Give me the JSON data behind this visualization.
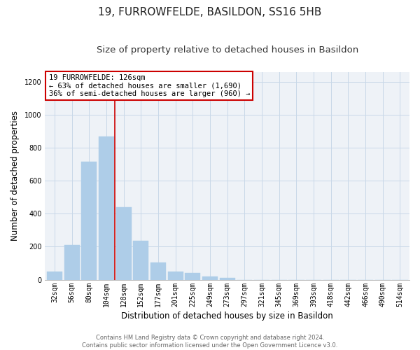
{
  "title": "19, FURROWFELDE, BASILDON, SS16 5HB",
  "subtitle": "Size of property relative to detached houses in Basildon",
  "xlabel": "Distribution of detached houses by size in Basildon",
  "ylabel": "Number of detached properties",
  "bar_labels": [
    "32sqm",
    "56sqm",
    "80sqm",
    "104sqm",
    "128sqm",
    "152sqm",
    "177sqm",
    "201sqm",
    "225sqm",
    "249sqm",
    "273sqm",
    "297sqm",
    "321sqm",
    "345sqm",
    "369sqm",
    "393sqm",
    "418sqm",
    "442sqm",
    "466sqm",
    "490sqm",
    "514sqm"
  ],
  "bar_values": [
    50,
    210,
    715,
    870,
    440,
    235,
    105,
    50,
    40,
    20,
    10,
    0,
    0,
    0,
    0,
    0,
    0,
    0,
    0,
    0,
    0
  ],
  "bar_color": "#aecde8",
  "vline_color": "#cc0000",
  "vline_x_index": 4,
  "annotation_title": "19 FURROWFELDE: 126sqm",
  "annotation_line1": "← 63% of detached houses are smaller (1,690)",
  "annotation_line2": "36% of semi-detached houses are larger (960) →",
  "annotation_box_color": "#ffffff",
  "annotation_box_edge": "#cc0000",
  "grid_color": "#c8d8e8",
  "background_color": "#eef2f7",
  "footer_line1": "Contains HM Land Registry data © Crown copyright and database right 2024.",
  "footer_line2": "Contains public sector information licensed under the Open Government Licence v3.0.",
  "ylim": [
    0,
    1260
  ],
  "yticks": [
    0,
    200,
    400,
    600,
    800,
    1000,
    1200
  ],
  "title_fontsize": 11,
  "subtitle_fontsize": 9.5,
  "axis_label_fontsize": 8.5,
  "tick_fontsize": 7,
  "annot_fontsize": 7.5,
  "footer_fontsize": 6
}
